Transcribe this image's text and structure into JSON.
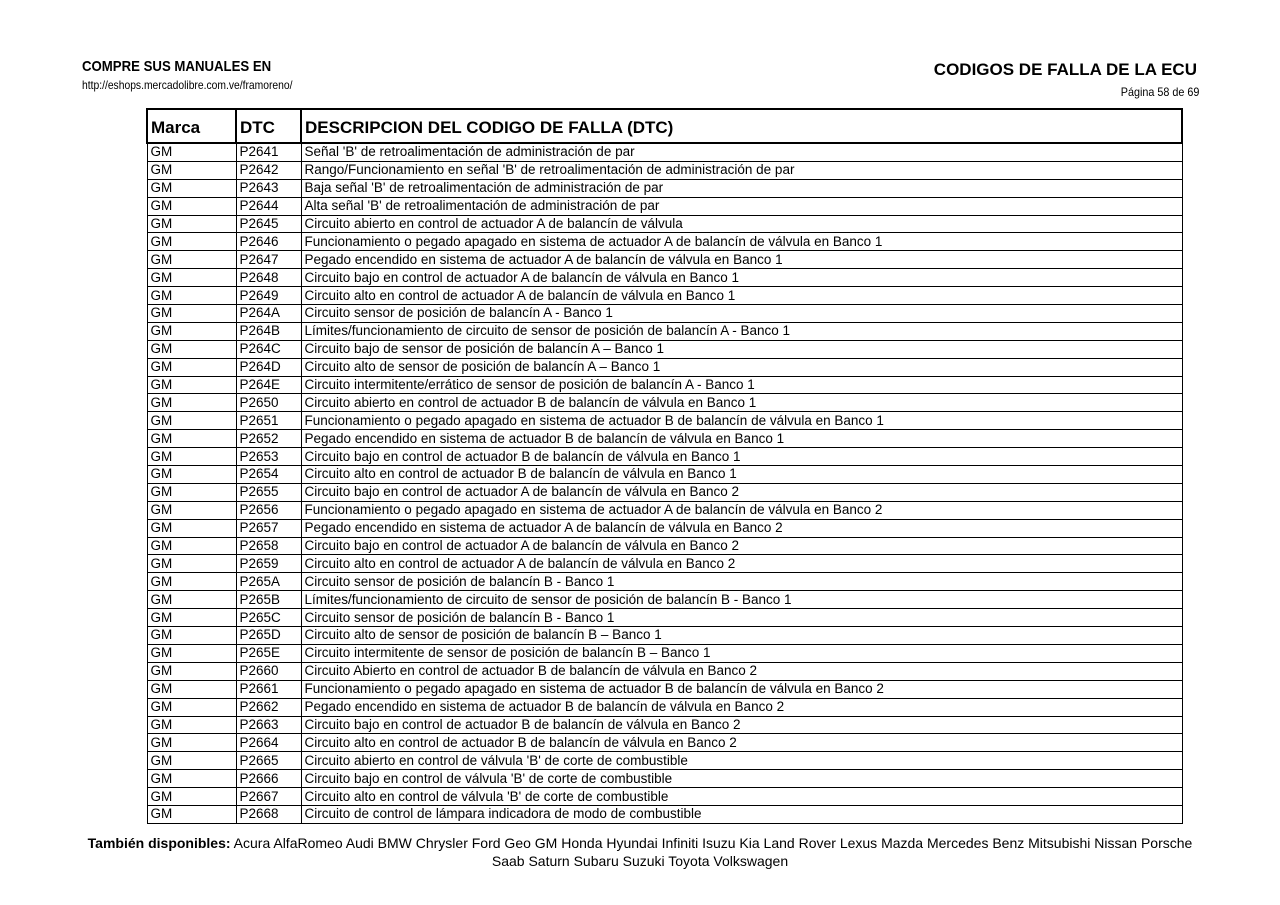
{
  "header": {
    "left_title": "COMPRE SUS MANUALES EN",
    "left_url": "http://eshops.mercadolibre.com.ve/framoreno/",
    "right_title": "CODIGOS DE FALLA DE LA ECU",
    "page": "Página 58 de 69"
  },
  "table": {
    "headers": [
      "Marca",
      "DTC",
      "DESCRIPCION DEL CODIGO DE FALLA (DTC)"
    ],
    "rows": [
      [
        "GM",
        "P2641",
        "Señal 'B' de retroalimentación de administración de par"
      ],
      [
        "GM",
        "P2642",
        "Rango/Funcionamiento en señal 'B' de retroalimentación de administración de par"
      ],
      [
        "GM",
        "P2643",
        "Baja señal 'B' de retroalimentación de administración de par"
      ],
      [
        "GM",
        "P2644",
        "Alta señal 'B' de retroalimentación de administración de par"
      ],
      [
        "GM",
        "P2645",
        "Circuito abierto en control de actuador A de balancín de válvula"
      ],
      [
        "GM",
        "P2646",
        "Funcionamiento o pegado apagado en sistema de actuador A de balancín de válvula en Banco 1"
      ],
      [
        "GM",
        "P2647",
        "Pegado encendido en sistema de actuador A de balancín de válvula en Banco 1"
      ],
      [
        "GM",
        "P2648",
        "Circuito bajo en control de actuador A de balancín de válvula en Banco 1"
      ],
      [
        "GM",
        "P2649",
        "Circuito alto en control de actuador A de balancín de válvula en Banco 1"
      ],
      [
        "GM",
        "P264A",
        "Circuito sensor de posición de balancín A - Banco 1"
      ],
      [
        "GM",
        "P264B",
        "Límites/funcionamiento de circuito de sensor de posición de balancín A - Banco 1"
      ],
      [
        "GM",
        "P264C",
        "Circuito bajo de sensor de posición de balancín A – Banco 1"
      ],
      [
        "GM",
        "P264D",
        "Circuito alto de sensor de posición de balancín A – Banco 1"
      ],
      [
        "GM",
        "P264E",
        "Circuito intermitente/errático de sensor de posición de balancín A - Banco 1"
      ],
      [
        "GM",
        "P2650",
        "Circuito abierto en control de actuador B de balancín de válvula en Banco 1"
      ],
      [
        "GM",
        "P2651",
        "Funcionamiento o pegado apagado en sistema de actuador B de balancín de válvula en Banco 1"
      ],
      [
        "GM",
        "P2652",
        "Pegado encendido en sistema de actuador B de balancín de válvula en Banco 1"
      ],
      [
        "GM",
        "P2653",
        "Circuito bajo en control de actuador B de balancín de válvula en Banco 1"
      ],
      [
        "GM",
        "P2654",
        "Circuito alto en control de actuador B de balancín de válvula en Banco 1"
      ],
      [
        "GM",
        "P2655",
        "Circuito bajo en control de actuador A de balancín de válvula en Banco 2"
      ],
      [
        "GM",
        "P2656",
        "Funcionamiento o pegado apagado en sistema de actuador A de balancín de válvula en Banco 2"
      ],
      [
        "GM",
        "P2657",
        "Pegado encendido en sistema de actuador A de balancín de válvula en Banco 2"
      ],
      [
        "GM",
        "P2658",
        "Circuito bajo en control de actuador A de balancín de válvula en Banco 2"
      ],
      [
        "GM",
        "P2659",
        "Circuito alto en control de actuador A de balancín de válvula en Banco 2"
      ],
      [
        "GM",
        "P265A",
        "Circuito sensor de posición de balancín B - Banco 1"
      ],
      [
        "GM",
        "P265B",
        "Límites/funcionamiento de circuito de sensor de posición de balancín B - Banco 1"
      ],
      [
        "GM",
        "P265C",
        "Circuito sensor de posición de balancín B - Banco 1"
      ],
      [
        "GM",
        "P265D",
        "Circuito alto de sensor de posición de balancín B – Banco 1"
      ],
      [
        "GM",
        "P265E",
        "Circuito intermitente de sensor de posición de balancín B – Banco 1"
      ],
      [
        "GM",
        "P2660",
        "Circuito Abierto en control de actuador B de balancín de válvula en Banco 2"
      ],
      [
        "GM",
        "P2661",
        "Funcionamiento o pegado apagado en sistema de actuador B de balancín de válvula en Banco 2"
      ],
      [
        "GM",
        "P2662",
        "Pegado encendido en sistema de actuador B de balancín de válvula en Banco 2"
      ],
      [
        "GM",
        "P2663",
        "Circuito bajo en control de actuador B de balancín de válvula en Banco 2"
      ],
      [
        "GM",
        "P2664",
        "Circuito alto en control de actuador B de balancín de válvula en Banco 2"
      ],
      [
        "GM",
        "P2665",
        "Circuito abierto en control de válvula 'B' de corte de combustible"
      ],
      [
        "GM",
        "P2666",
        "Circuito bajo en control de válvula 'B' de corte de combustible"
      ],
      [
        "GM",
        "P2667",
        "Circuito alto en control de válvula 'B' de corte de combustible"
      ],
      [
        "GM",
        "P2668",
        "Circuito de control de lámpara indicadora de modo de combustible"
      ]
    ]
  },
  "footer": {
    "label": "También disponibles:",
    "brands": "Acura AlfaRomeo Audi BMW Chrysler Ford Geo GM Honda Hyundai Infiniti Isuzu Kia Land Rover Lexus Mazda Mercedes Benz Mitsubishi Nissan Porsche Saab Saturn Subaru Suzuki Toyota Volkswagen"
  }
}
